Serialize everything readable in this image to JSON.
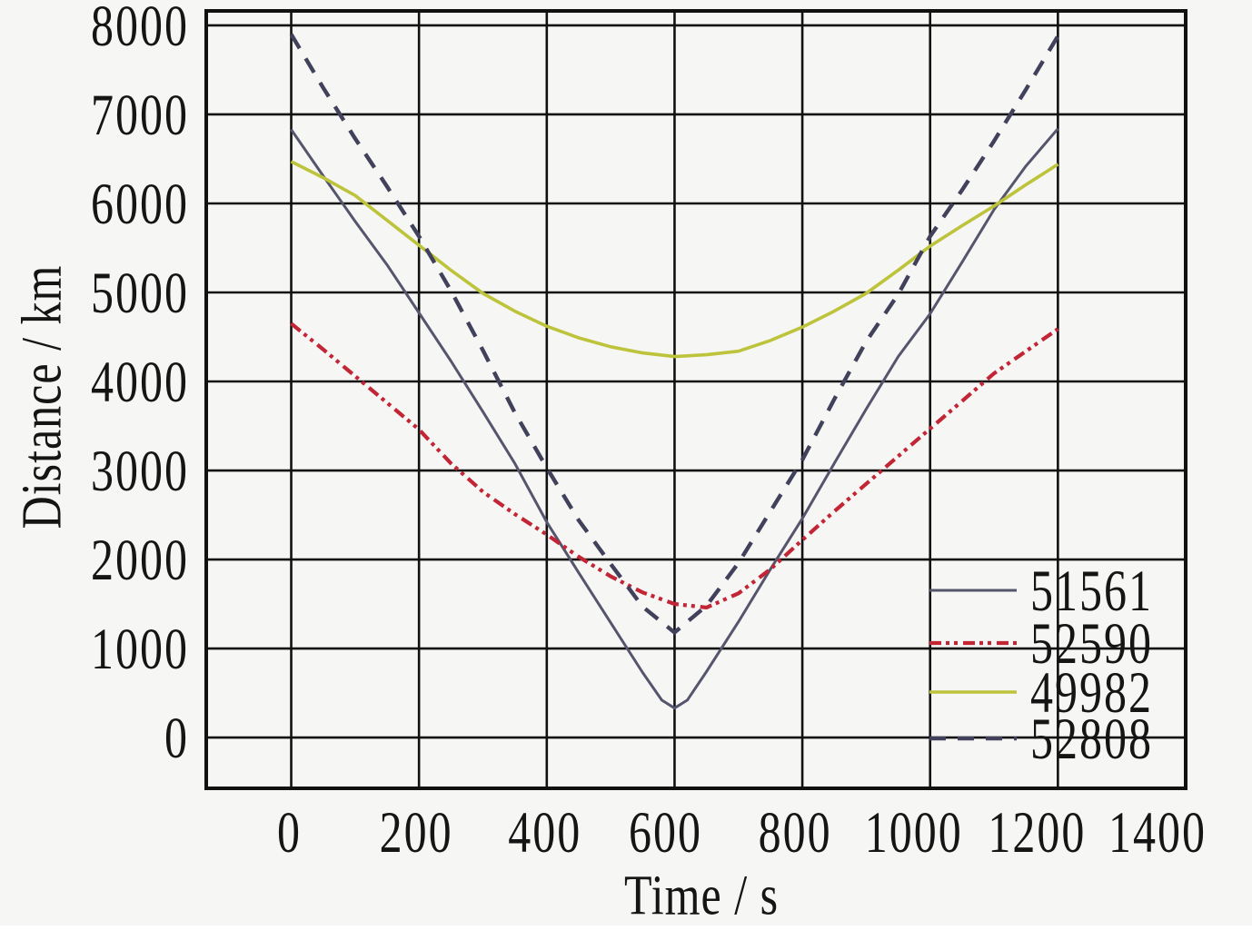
{
  "figure": {
    "background": "#f6f6f4",
    "axis_color": "#111111",
    "text_color": "#151515"
  },
  "chart_data": {
    "type": "line",
    "title": "",
    "xlabel": "Time / s",
    "ylabel": "Distance / km",
    "xlim": [
      -133,
      1400
    ],
    "ylim": [
      -571,
      8163
    ],
    "x_ticks": [
      0,
      200,
      400,
      600,
      800,
      1000,
      1200,
      1400
    ],
    "y_ticks": [
      0,
      1000,
      2000,
      3000,
      4000,
      5000,
      6000,
      7000,
      8000
    ],
    "grid": true,
    "legend_position": "lower-right",
    "series": [
      {
        "name": "51561",
        "color": "#55556e",
        "width": 3,
        "dash": "none",
        "points": [
          [
            0,
            6830
          ],
          [
            50,
            6310
          ],
          [
            100,
            5800
          ],
          [
            150,
            5310
          ],
          [
            200,
            4770
          ],
          [
            250,
            4230
          ],
          [
            300,
            3660
          ],
          [
            350,
            3080
          ],
          [
            400,
            2420
          ],
          [
            450,
            1850
          ],
          [
            500,
            1290
          ],
          [
            550,
            730
          ],
          [
            580,
            420
          ],
          [
            600,
            330
          ],
          [
            620,
            420
          ],
          [
            650,
            740
          ],
          [
            700,
            1300
          ],
          [
            750,
            1890
          ],
          [
            800,
            2460
          ],
          [
            850,
            3080
          ],
          [
            900,
            3690
          ],
          [
            950,
            4280
          ],
          [
            1000,
            4760
          ],
          [
            1050,
            5340
          ],
          [
            1100,
            5930
          ],
          [
            1150,
            6420
          ],
          [
            1200,
            6840
          ]
        ]
      },
      {
        "name": "52590",
        "color": "#c22535",
        "width": 4.2,
        "dash": "13 5 4 5 4 6",
        "points": [
          [
            0,
            4650
          ],
          [
            50,
            4360
          ],
          [
            100,
            4060
          ],
          [
            150,
            3760
          ],
          [
            200,
            3460
          ],
          [
            250,
            3080
          ],
          [
            300,
            2760
          ],
          [
            350,
            2510
          ],
          [
            400,
            2280
          ],
          [
            450,
            2030
          ],
          [
            500,
            1810
          ],
          [
            550,
            1630
          ],
          [
            600,
            1500
          ],
          [
            650,
            1460
          ],
          [
            700,
            1620
          ],
          [
            750,
            1890
          ],
          [
            800,
            2220
          ],
          [
            850,
            2540
          ],
          [
            900,
            2850
          ],
          [
            950,
            3160
          ],
          [
            1000,
            3470
          ],
          [
            1050,
            3780
          ],
          [
            1100,
            4090
          ],
          [
            1150,
            4340
          ],
          [
            1200,
            4590
          ]
        ]
      },
      {
        "name": "49982",
        "color": "#bdc43c",
        "width": 3.6,
        "dash": "none",
        "points": [
          [
            0,
            6470
          ],
          [
            50,
            6290
          ],
          [
            100,
            6090
          ],
          [
            150,
            5810
          ],
          [
            200,
            5530
          ],
          [
            250,
            5250
          ],
          [
            300,
            4990
          ],
          [
            350,
            4790
          ],
          [
            400,
            4620
          ],
          [
            450,
            4490
          ],
          [
            500,
            4390
          ],
          [
            550,
            4320
          ],
          [
            600,
            4280
          ],
          [
            650,
            4300
          ],
          [
            700,
            4340
          ],
          [
            750,
            4460
          ],
          [
            800,
            4610
          ],
          [
            850,
            4790
          ],
          [
            900,
            4990
          ],
          [
            950,
            5250
          ],
          [
            1000,
            5520
          ],
          [
            1050,
            5750
          ],
          [
            1100,
            5970
          ],
          [
            1150,
            6210
          ],
          [
            1200,
            6440
          ]
        ]
      },
      {
        "name": "52808",
        "color": "#41415c",
        "width": 4.4,
        "dash": "18 13",
        "points": [
          [
            0,
            7900
          ],
          [
            50,
            7300
          ],
          [
            100,
            6730
          ],
          [
            150,
            6190
          ],
          [
            200,
            5630
          ],
          [
            250,
            5020
          ],
          [
            300,
            4350
          ],
          [
            350,
            3650
          ],
          [
            400,
            3030
          ],
          [
            450,
            2440
          ],
          [
            500,
            1950
          ],
          [
            550,
            1470
          ],
          [
            600,
            1180
          ],
          [
            650,
            1480
          ],
          [
            700,
            1960
          ],
          [
            750,
            2540
          ],
          [
            800,
            3120
          ],
          [
            850,
            3800
          ],
          [
            900,
            4450
          ],
          [
            950,
            4980
          ],
          [
            1000,
            5630
          ],
          [
            1050,
            6150
          ],
          [
            1100,
            6700
          ],
          [
            1150,
            7280
          ],
          [
            1200,
            7880
          ]
        ]
      }
    ]
  }
}
